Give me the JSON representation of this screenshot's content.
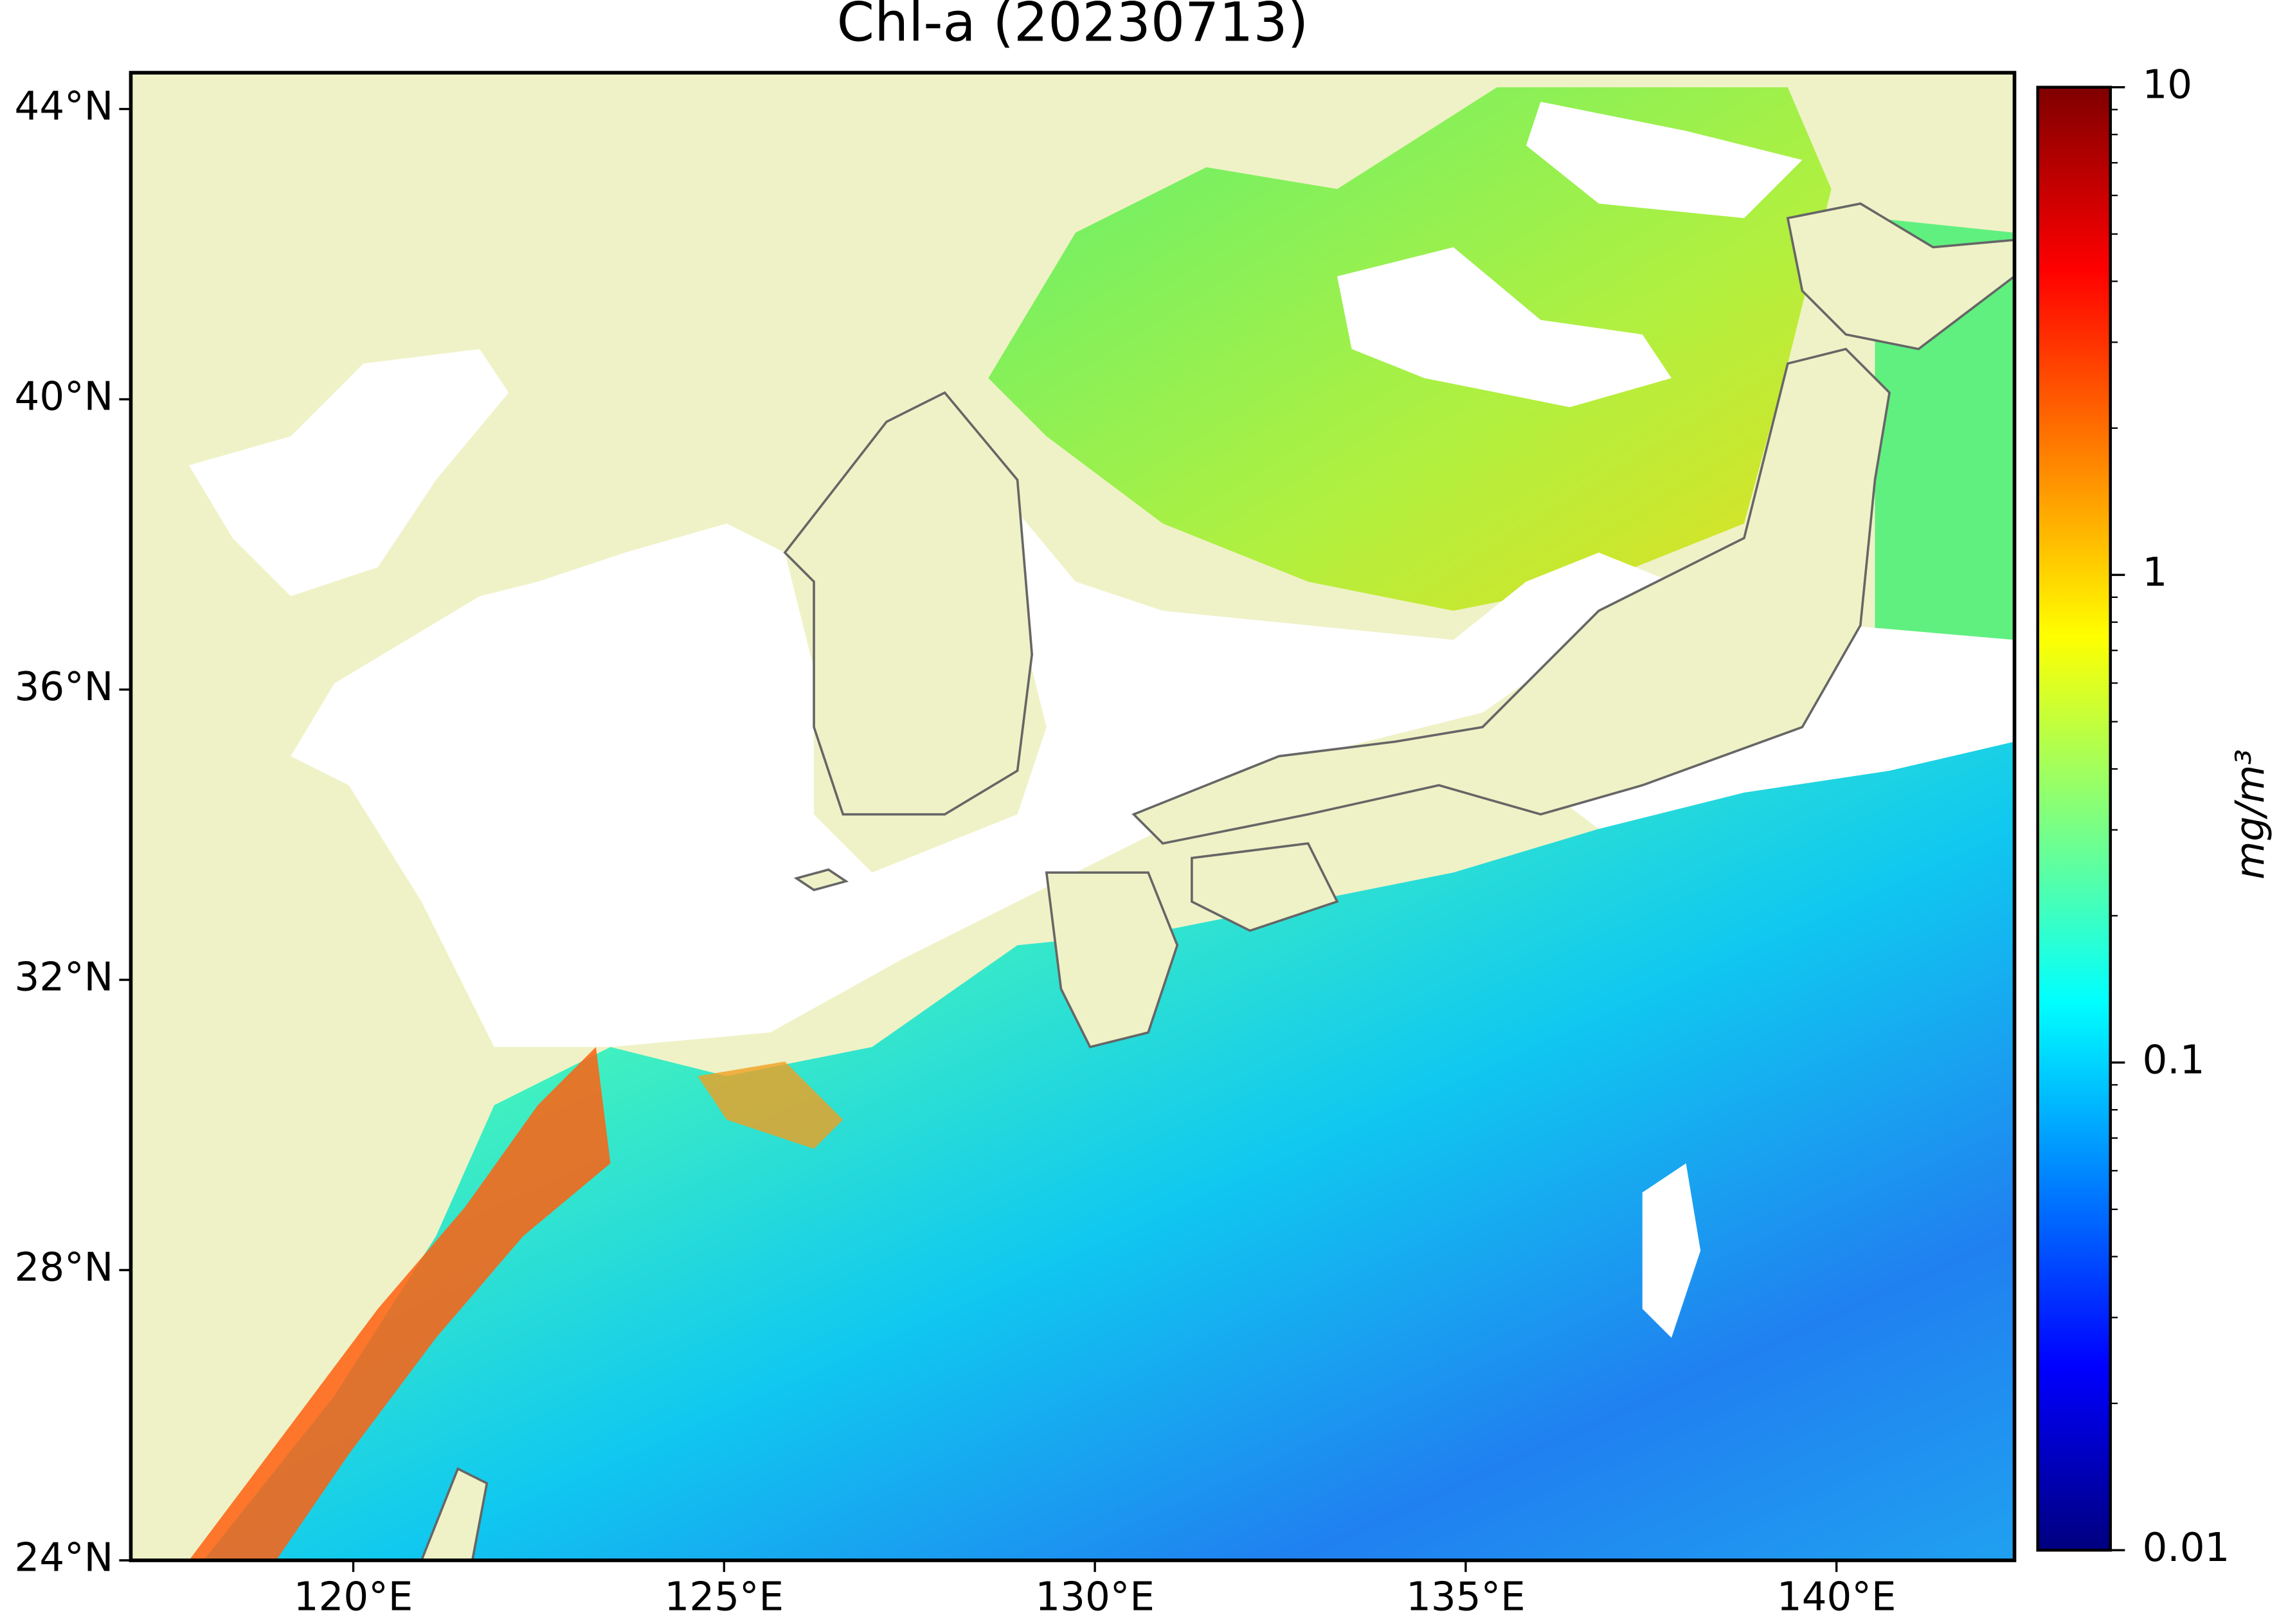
{
  "chart_data": {
    "type": "map",
    "title": "Chl-a (20230713)",
    "xlim": [
      117,
      142.4
    ],
    "ylim": [
      24,
      44.5
    ],
    "xticks": [
      {
        "value": 120,
        "label": "120°E"
      },
      {
        "value": 125,
        "label": "125°E"
      },
      {
        "value": 130,
        "label": "130°E"
      },
      {
        "value": 135,
        "label": "135°E"
      },
      {
        "value": 140,
        "label": "140°E"
      }
    ],
    "yticks": [
      {
        "value": 24,
        "label": "24°N"
      },
      {
        "value": 28,
        "label": "28°N"
      },
      {
        "value": 32,
        "label": "32°N"
      },
      {
        "value": 36,
        "label": "36°N"
      },
      {
        "value": 40,
        "label": "40°N"
      },
      {
        "value": 44,
        "label": "44°N"
      }
    ],
    "colorbar": {
      "label": "mg/m³",
      "scale": "log",
      "lim": [
        0.01,
        10
      ],
      "ticks": [
        0.01,
        0.1,
        1,
        10
      ],
      "colormap": [
        "#00007f",
        "#0000ff",
        "#007fff",
        "#00ffff",
        "#7fff7f",
        "#ffff00",
        "#ff7f00",
        "#ff0000",
        "#7f0000"
      ]
    }
  }
}
